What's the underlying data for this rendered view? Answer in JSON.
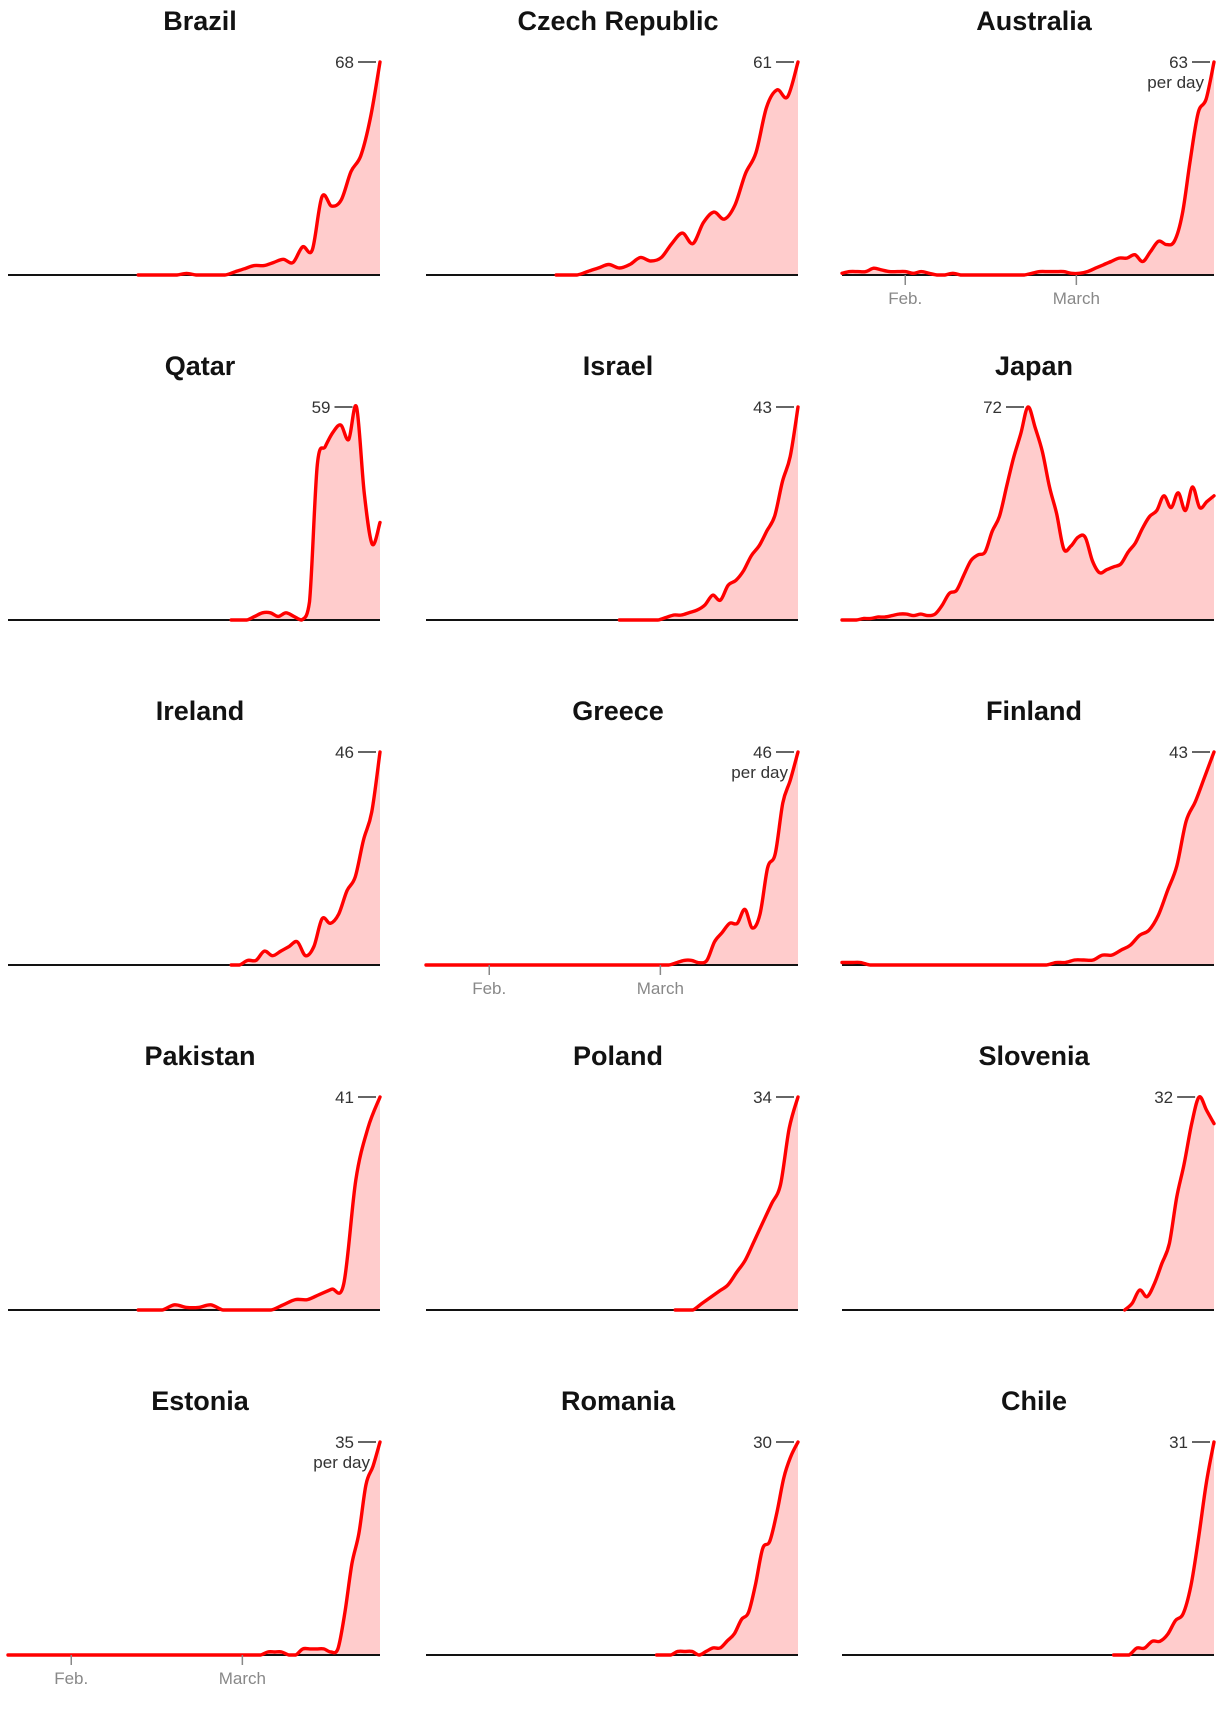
{
  "colors": {
    "line": "#ff0000",
    "area": "#ffcccc",
    "axis": "#121212",
    "tick": "#888888",
    "label": "#333333"
  },
  "chart_data": [
    {
      "type": "area",
      "title": "Brazil",
      "peak_label": "68",
      "peak_value": 68,
      "ymax": 68,
      "show_per_day": false,
      "show_axis": false,
      "start": 0.35,
      "values": [
        0,
        0,
        0,
        0,
        0,
        0.5,
        0,
        0,
        0,
        0,
        1,
        2,
        3,
        3,
        4,
        5,
        4,
        9,
        8,
        25,
        22,
        24,
        33,
        38,
        50,
        68
      ]
    },
    {
      "type": "area",
      "title": "Czech Republic",
      "peak_label": "61",
      "peak_value": 61,
      "ymax": 61,
      "show_per_day": false,
      "show_axis": false,
      "start": 0.35,
      "values": [
        0,
        0,
        0,
        1,
        2,
        3,
        2,
        3,
        5,
        4,
        5,
        9,
        12,
        9,
        15,
        18,
        16,
        20,
        29,
        35,
        48,
        53,
        51,
        61
      ]
    },
    {
      "type": "area",
      "title": "Australia",
      "peak_label": "63",
      "peak_value": 63,
      "ymax": 63,
      "show_per_day": true,
      "show_axis": true,
      "start": 0.0,
      "values": [
        0.5,
        1,
        1,
        1,
        2,
        1.5,
        1,
        1,
        1,
        0.5,
        1,
        0.5,
        0,
        0,
        0.5,
        0,
        0,
        0,
        0,
        0,
        0,
        0,
        0,
        0,
        0.5,
        1,
        1,
        1,
        1,
        0.5,
        0.5,
        1,
        2,
        3,
        4,
        5,
        5,
        6,
        4,
        7,
        10,
        9,
        10,
        18,
        34,
        48,
        52,
        63
      ]
    },
    {
      "type": "area",
      "title": "Qatar",
      "peak_label": "59",
      "peak_value": 59,
      "ymax": 59,
      "show_per_day": false,
      "show_axis": false,
      "start": 0.6,
      "values": [
        0,
        0,
        0,
        1,
        2,
        2,
        1,
        2,
        1,
        0,
        5,
        43,
        48,
        52,
        54,
        50,
        59,
        35,
        21,
        27
      ]
    },
    {
      "type": "area",
      "title": "Israel",
      "peak_label": "43",
      "peak_value": 43,
      "ymax": 43,
      "show_per_day": false,
      "show_axis": false,
      "start": 0.52,
      "values": [
        0,
        0,
        0,
        0,
        0,
        0,
        0.5,
        1,
        1,
        1.5,
        2,
        3,
        5,
        4,
        7,
        8,
        10,
        13,
        15,
        18,
        21,
        28,
        33,
        43
      ]
    },
    {
      "type": "area",
      "title": "Japan",
      "peak_label": "72",
      "peak_value": 72,
      "ymax": 72,
      "show_per_day": false,
      "show_axis": false,
      "start": 0.0,
      "values": [
        0,
        0,
        0,
        0.5,
        0.5,
        1,
        1,
        1.5,
        2,
        2,
        1.5,
        2,
        1.5,
        2,
        5,
        9,
        10,
        15,
        20,
        22,
        23,
        30,
        35,
        45,
        55,
        63,
        72,
        65,
        57,
        45,
        36,
        24,
        25,
        28,
        28,
        20,
        16,
        17,
        18,
        19,
        23,
        26,
        31,
        35,
        37,
        42,
        38,
        43,
        37,
        45,
        38,
        40,
        42
      ]
    },
    {
      "type": "area",
      "title": "Ireland",
      "peak_label": "46",
      "peak_value": 46,
      "ymax": 46,
      "show_per_day": false,
      "show_axis": false,
      "start": 0.6,
      "values": [
        0,
        0,
        1,
        1,
        3,
        2,
        3,
        4,
        5,
        2,
        4,
        10,
        9,
        11,
        16,
        19,
        27,
        33,
        46
      ]
    },
    {
      "type": "area",
      "title": "Greece",
      "peak_label": "46",
      "peak_value": 46,
      "ymax": 46,
      "show_per_day": true,
      "show_axis": true,
      "start": 0.0,
      "values": [
        0,
        0,
        0,
        0,
        0,
        0,
        0,
        0,
        0,
        0,
        0,
        0,
        0,
        0,
        0,
        0,
        0,
        0,
        0,
        0,
        0,
        0,
        0,
        0,
        0,
        0,
        0,
        0,
        0,
        0,
        0,
        0,
        0,
        0.5,
        1,
        1,
        0.5,
        1,
        5,
        7,
        9,
        9,
        12,
        8,
        11,
        21,
        24,
        35,
        40,
        46
      ]
    },
    {
      "type": "area",
      "title": "Finland",
      "peak_label": "43",
      "peak_value": 43,
      "ymax": 43,
      "show_per_day": false,
      "show_axis": false,
      "start": 0.0,
      "values": [
        0.5,
        0.5,
        0.5,
        0,
        0,
        0,
        0,
        0,
        0,
        0,
        0,
        0,
        0,
        0,
        0,
        0,
        0,
        0,
        0,
        0,
        0,
        0,
        0,
        0.5,
        0.5,
        1,
        1,
        1,
        2,
        2,
        3,
        4,
        6,
        7,
        10,
        15,
        20,
        29,
        33,
        38,
        43
      ]
    },
    {
      "type": "area",
      "title": "Pakistan",
      "peak_label": "41",
      "peak_value": 41,
      "ymax": 41,
      "show_per_day": false,
      "show_axis": false,
      "start": 0.35,
      "values": [
        0,
        0,
        0,
        1,
        0.5,
        0.5,
        1,
        0,
        0,
        0,
        0,
        0,
        1,
        2,
        2,
        3,
        4,
        5,
        25,
        35,
        41
      ]
    },
    {
      "type": "area",
      "title": "Poland",
      "peak_label": "34",
      "peak_value": 34,
      "ymax": 34,
      "show_per_day": false,
      "show_axis": false,
      "start": 0.67,
      "values": [
        0,
        0,
        0,
        1,
        2,
        3,
        4,
        6,
        8,
        11,
        14,
        17,
        20,
        29,
        34
      ]
    },
    {
      "type": "area",
      "title": "Slovenia",
      "peak_label": "32",
      "peak_value": 32,
      "ymax": 32,
      "show_per_day": false,
      "show_axis": false,
      "start": 0.76,
      "values": [
        0,
        1,
        3,
        2,
        4,
        7,
        10,
        17,
        22,
        28,
        32,
        30,
        28
      ]
    },
    {
      "type": "area",
      "title": "Estonia",
      "peak_label": "35",
      "peak_value": 35,
      "ymax": 35,
      "show_per_day": true,
      "show_axis": true,
      "start": 0.0,
      "values": [
        0,
        0,
        0,
        0,
        0,
        0,
        0,
        0,
        0,
        0,
        0,
        0,
        0,
        0,
        0,
        0,
        0,
        0,
        0,
        0,
        0,
        0,
        0,
        0,
        0,
        0,
        0,
        0,
        0,
        0,
        0,
        0,
        0,
        0,
        0,
        0,
        0,
        0.5,
        0.5,
        0.5,
        0,
        0,
        1,
        1,
        1,
        1,
        0.5,
        1,
        7,
        15,
        20,
        28,
        31,
        35
      ]
    },
    {
      "type": "area",
      "title": "Romania",
      "peak_label": "30",
      "peak_value": 30,
      "ymax": 30,
      "show_per_day": false,
      "show_axis": false,
      "start": 0.62,
      "values": [
        0,
        0,
        0,
        0.5,
        0.5,
        0.5,
        0,
        0.5,
        1,
        1,
        2,
        3,
        5,
        6,
        10,
        15,
        16,
        20,
        25,
        28,
        30
      ]
    },
    {
      "type": "area",
      "title": "Chile",
      "peak_label": "31",
      "peak_value": 31,
      "ymax": 31,
      "show_per_day": false,
      "show_axis": false,
      "start": 0.73,
      "values": [
        0,
        0,
        0,
        1,
        1,
        2,
        2,
        3,
        5,
        6,
        10,
        17,
        25,
        31
      ]
    }
  ],
  "axis_labels": {
    "feb": "Feb.",
    "march": "March",
    "per_day": "per day"
  },
  "axis_positions": {
    "feb": 0.17,
    "march": 0.63
  }
}
